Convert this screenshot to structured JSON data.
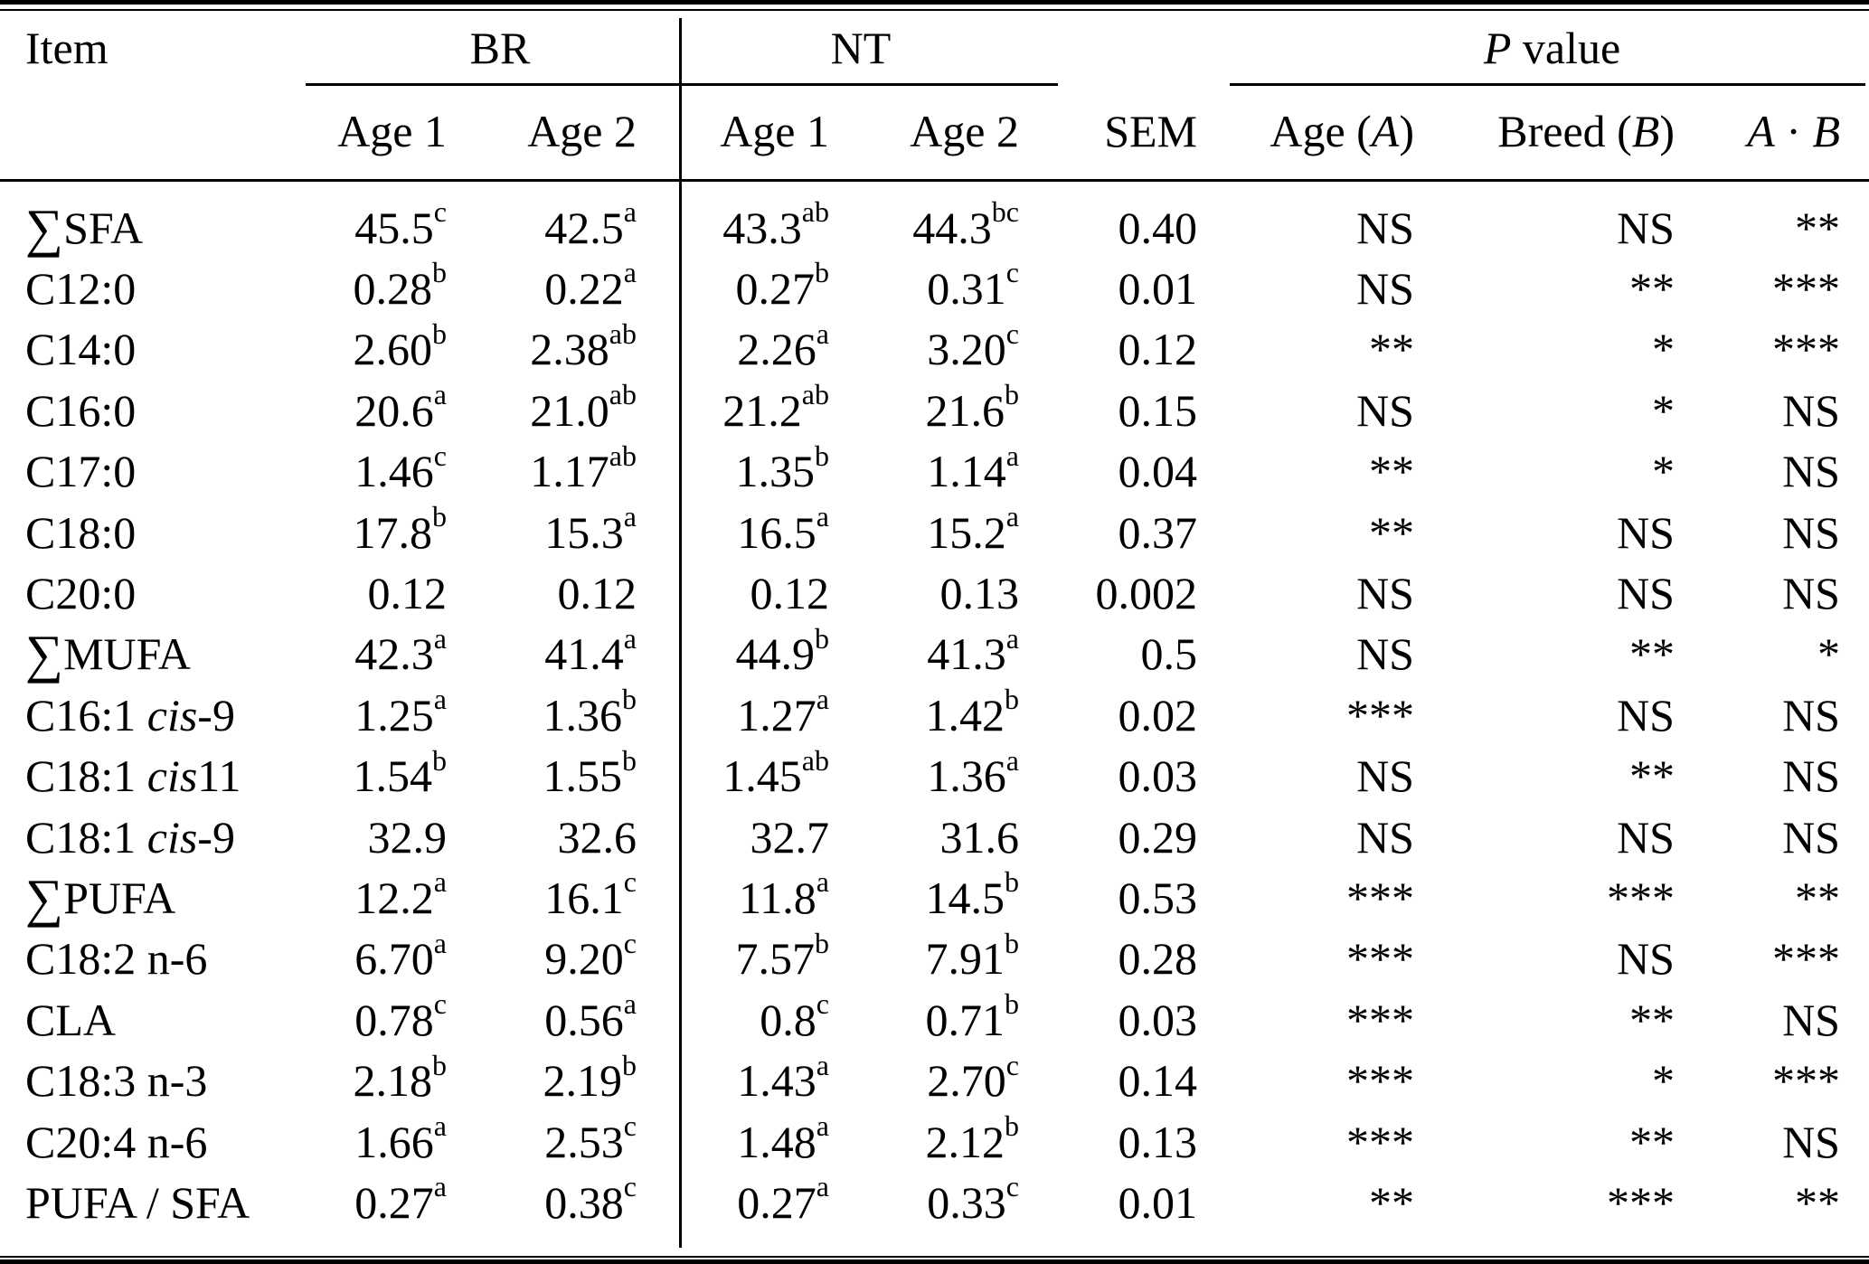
{
  "table": {
    "header": {
      "item": "Item",
      "br": "BR",
      "nt": "NT",
      "p_it": "P",
      "p_rest": " value"
    },
    "subheader": {
      "br_age1": "Age 1",
      "br_age2": "Age 2",
      "nt_age1": "Age 1",
      "nt_age2": "Age 2",
      "sem": "SEM",
      "age_a_pre": "Age (",
      "age_a_it": "A",
      "age_a_post": ")",
      "breed_pre": "Breed (",
      "breed_it": "B",
      "breed_post": ")",
      "ab_it1": "A",
      "ab_mid": " · ",
      "ab_it2": "B"
    },
    "rows": [
      {
        "item": {
          "sigma": "∑",
          "text": "SFA"
        },
        "br1": {
          "v": "45.5",
          "s": "c"
        },
        "br2": {
          "v": "42.5",
          "s": "a"
        },
        "nt1": {
          "v": "43.3",
          "s": "ab"
        },
        "nt2": {
          "v": "44.3",
          "s": "bc"
        },
        "sem": "0.40",
        "pa": "NS",
        "pb": "NS",
        "pab": "**"
      },
      {
        "item": {
          "text": "C12:0"
        },
        "br1": {
          "v": "0.28",
          "s": "b"
        },
        "br2": {
          "v": "0.22",
          "s": "a"
        },
        "nt1": {
          "v": "0.27",
          "s": "b"
        },
        "nt2": {
          "v": "0.31",
          "s": "c"
        },
        "sem": "0.01",
        "pa": "NS",
        "pb": "**",
        "pab": "***"
      },
      {
        "item": {
          "text": "C14:0"
        },
        "br1": {
          "v": "2.60",
          "s": "b"
        },
        "br2": {
          "v": "2.38",
          "s": "ab"
        },
        "nt1": {
          "v": "2.26",
          "s": "a"
        },
        "nt2": {
          "v": "3.20",
          "s": "c"
        },
        "sem": "0.12",
        "pa": "**",
        "pb": "*",
        "pab": "***"
      },
      {
        "item": {
          "text": "C16:0"
        },
        "br1": {
          "v": "20.6",
          "s": "a"
        },
        "br2": {
          "v": "21.0",
          "s": "ab"
        },
        "nt1": {
          "v": "21.2",
          "s": "ab"
        },
        "nt2": {
          "v": "21.6",
          "s": "b"
        },
        "sem": "0.15",
        "pa": "NS",
        "pb": "*",
        "pab": "NS"
      },
      {
        "item": {
          "text": "C17:0"
        },
        "br1": {
          "v": "1.46",
          "s": "c"
        },
        "br2": {
          "v": "1.17",
          "s": "ab"
        },
        "nt1": {
          "v": "1.35",
          "s": "b"
        },
        "nt2": {
          "v": "1.14",
          "s": "a"
        },
        "sem": "0.04",
        "pa": "**",
        "pb": "*",
        "pab": "NS"
      },
      {
        "item": {
          "text": "C18:0"
        },
        "br1": {
          "v": "17.8",
          "s": "b"
        },
        "br2": {
          "v": "15.3",
          "s": "a"
        },
        "nt1": {
          "v": "16.5",
          "s": "a"
        },
        "nt2": {
          "v": "15.2",
          "s": "a"
        },
        "sem": "0.37",
        "pa": "**",
        "pb": "NS",
        "pab": "NS"
      },
      {
        "item": {
          "text": "C20:0"
        },
        "br1": {
          "v": "0.12",
          "s": ""
        },
        "br2": {
          "v": "0.12",
          "s": ""
        },
        "nt1": {
          "v": "0.12",
          "s": ""
        },
        "nt2": {
          "v": "0.13",
          "s": ""
        },
        "sem": "0.002",
        "pa": "NS",
        "pb": "NS",
        "pab": "NS"
      },
      {
        "item": {
          "sigma": "∑",
          "text": "MUFA"
        },
        "br1": {
          "v": "42.3",
          "s": "a"
        },
        "br2": {
          "v": "41.4",
          "s": "a"
        },
        "nt1": {
          "v": "44.9",
          "s": "b"
        },
        "nt2": {
          "v": "41.3",
          "s": "a"
        },
        "sem": "0.5",
        "pa": "NS",
        "pb": "**",
        "pab": "*"
      },
      {
        "item": {
          "text": "C16:1 ",
          "it": "cis",
          "post": "-9"
        },
        "br1": {
          "v": "1.25",
          "s": "a"
        },
        "br2": {
          "v": "1.36",
          "s": "b"
        },
        "nt1": {
          "v": "1.27",
          "s": "a"
        },
        "nt2": {
          "v": "1.42",
          "s": "b"
        },
        "sem": "0.02",
        "pa": "***",
        "pb": "NS",
        "pab": "NS"
      },
      {
        "item": {
          "text": "C18:1 ",
          "it": "cis",
          "post": "11"
        },
        "br1": {
          "v": "1.54",
          "s": "b"
        },
        "br2": {
          "v": "1.55",
          "s": "b"
        },
        "nt1": {
          "v": "1.45",
          "s": "ab"
        },
        "nt2": {
          "v": "1.36",
          "s": "a"
        },
        "sem": "0.03",
        "pa": "NS",
        "pb": "**",
        "pab": "NS"
      },
      {
        "item": {
          "text": "C18:1 ",
          "it": "cis",
          "post": "-9"
        },
        "br1": {
          "v": "32.9",
          "s": ""
        },
        "br2": {
          "v": "32.6",
          "s": ""
        },
        "nt1": {
          "v": "32.7",
          "s": ""
        },
        "nt2": {
          "v": "31.6",
          "s": ""
        },
        "sem": "0.29",
        "pa": "NS",
        "pb": "NS",
        "pab": "NS"
      },
      {
        "item": {
          "sigma": "∑",
          "text": "PUFA"
        },
        "br1": {
          "v": "12.2",
          "s": "a"
        },
        "br2": {
          "v": "16.1",
          "s": "c"
        },
        "nt1": {
          "v": "11.8",
          "s": "a"
        },
        "nt2": {
          "v": "14.5",
          "s": "b"
        },
        "sem": "0.53",
        "pa": "***",
        "pb": "***",
        "pab": "**"
      },
      {
        "item": {
          "text": "C18:2 n-6"
        },
        "br1": {
          "v": "6.70",
          "s": "a"
        },
        "br2": {
          "v": "9.20",
          "s": "c"
        },
        "nt1": {
          "v": "7.57",
          "s": "b"
        },
        "nt2": {
          "v": "7.91",
          "s": "b"
        },
        "sem": "0.28",
        "pa": "***",
        "pb": "NS",
        "pab": "***"
      },
      {
        "item": {
          "text": "CLA"
        },
        "br1": {
          "v": "0.78",
          "s": "c"
        },
        "br2": {
          "v": "0.56",
          "s": "a"
        },
        "nt1": {
          "v": "0.8",
          "s": "c"
        },
        "nt2": {
          "v": "0.71",
          "s": "b"
        },
        "sem": "0.03",
        "pa": "***",
        "pb": "**",
        "pab": "NS"
      },
      {
        "item": {
          "text": "C18:3 n-3"
        },
        "br1": {
          "v": "2.18",
          "s": "b"
        },
        "br2": {
          "v": "2.19",
          "s": "b"
        },
        "nt1": {
          "v": "1.43",
          "s": "a"
        },
        "nt2": {
          "v": "2.70",
          "s": "c"
        },
        "sem": "0.14",
        "pa": "***",
        "pb": "*",
        "pab": "***"
      },
      {
        "item": {
          "text": "C20:4 n-6"
        },
        "br1": {
          "v": "1.66",
          "s": "a"
        },
        "br2": {
          "v": "2.53",
          "s": "c"
        },
        "nt1": {
          "v": "1.48",
          "s": "a"
        },
        "nt2": {
          "v": "2.12",
          "s": "b"
        },
        "sem": "0.13",
        "pa": "***",
        "pb": "**",
        "pab": "NS"
      },
      {
        "item": {
          "text": "PUFA / SFA"
        },
        "br1": {
          "v": "0.27",
          "s": "a"
        },
        "br2": {
          "v": "0.38",
          "s": "c"
        },
        "nt1": {
          "v": "0.27",
          "s": "a"
        },
        "nt2": {
          "v": "0.33",
          "s": "c"
        },
        "sem": "0.01",
        "pa": "**",
        "pb": "***",
        "pab": "**"
      }
    ]
  }
}
